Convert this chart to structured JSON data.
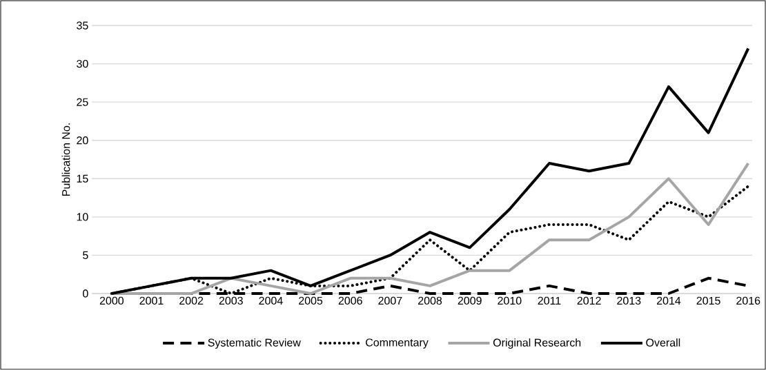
{
  "chart_data": {
    "type": "line",
    "ylabel": "Publication No.",
    "categories": [
      "2000",
      "2001",
      "2002",
      "2003",
      "2004",
      "2005",
      "2006",
      "2007",
      "2008",
      "2009",
      "2010",
      "2011",
      "2012",
      "2013",
      "2014",
      "2015",
      "2016"
    ],
    "series": [
      {
        "name": "Systematic Review",
        "color": "#000000",
        "line_style": "dashed",
        "values": [
          0,
          0,
          0,
          0,
          0,
          0,
          0,
          1,
          0,
          0,
          0,
          1,
          0,
          0,
          0,
          2,
          1
        ]
      },
      {
        "name": "Commentary",
        "color": "#000000",
        "line_style": "dotted",
        "values": [
          0,
          1,
          2,
          0,
          2,
          1,
          1,
          2,
          7,
          3,
          8,
          9,
          9,
          7,
          12,
          10,
          14
        ]
      },
      {
        "name": "Original Research",
        "color": "#a5a5a5",
        "line_style": "solid",
        "values": [
          0,
          0,
          0,
          2,
          1,
          0,
          2,
          2,
          1,
          3,
          3,
          7,
          7,
          10,
          15,
          9,
          17
        ]
      },
      {
        "name": "Overall",
        "color": "#000000",
        "line_style": "solid",
        "values": [
          0,
          1,
          2,
          2,
          3,
          1,
          3,
          5,
          8,
          6,
          11,
          17,
          16,
          17,
          27,
          21,
          32
        ]
      }
    ],
    "ylim": [
      0,
      35
    ],
    "yticks": [
      0,
      5,
      10,
      15,
      20,
      25,
      30,
      35
    ],
    "grid": "y",
    "legend": "bottom",
    "marker": "none"
  }
}
